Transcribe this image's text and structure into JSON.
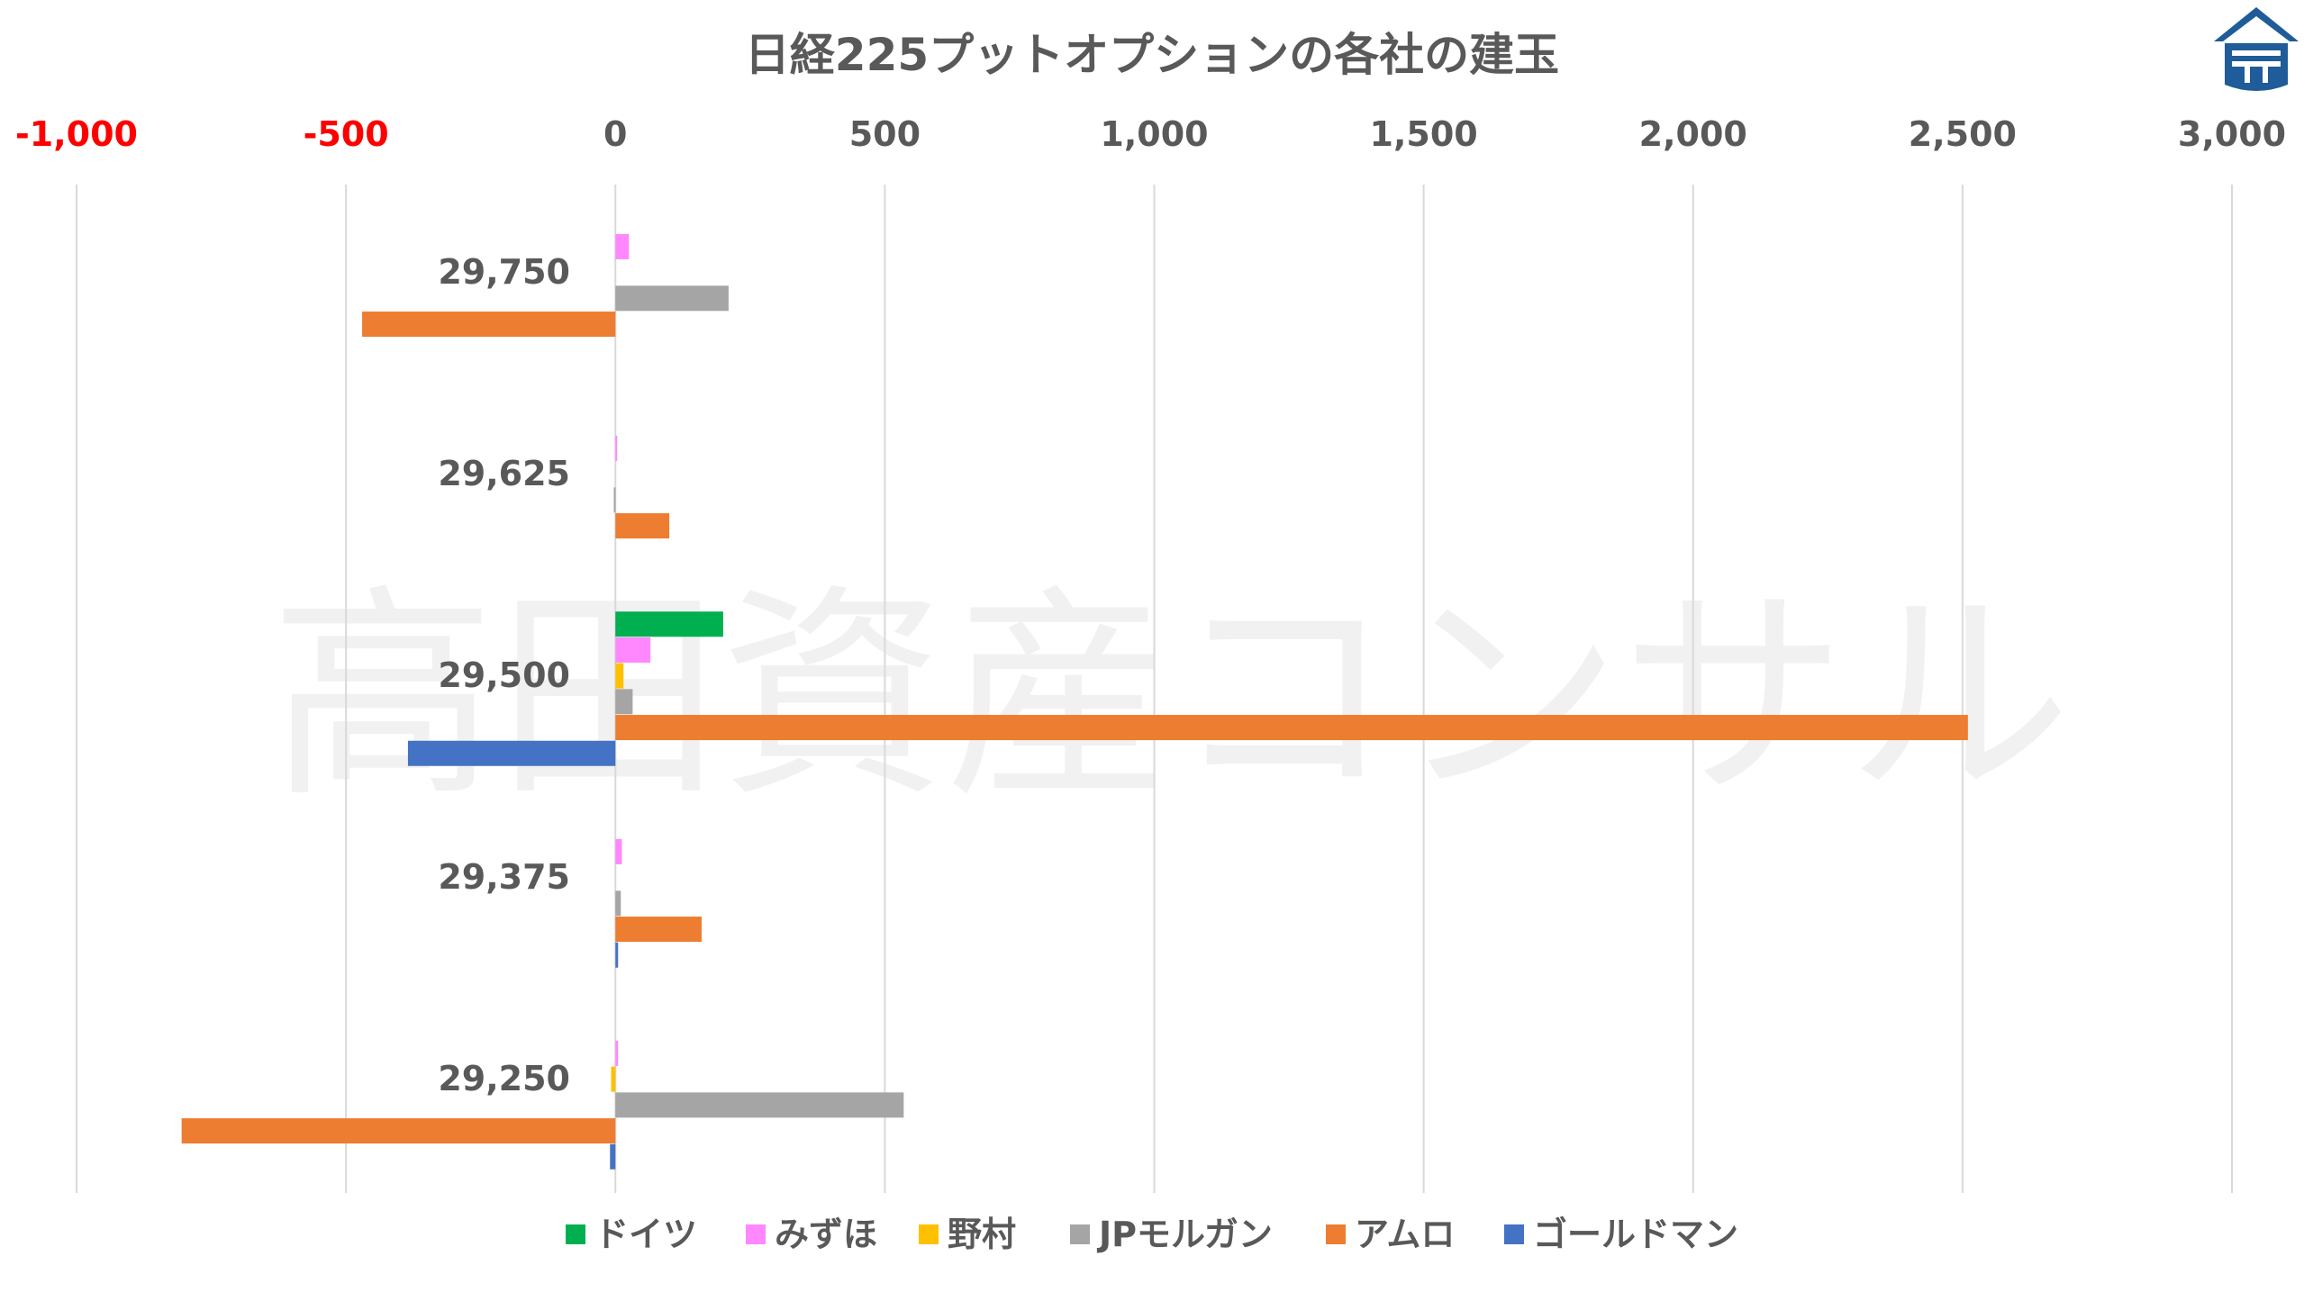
{
  "watermark": "高田資産コンサル",
  "colors": {
    "grid": "#d9d9d9",
    "axis_label": "#595959",
    "negative_label": "#ff0000",
    "logo": "#1f5c99"
  },
  "logo": {
    "icon": "building-logo-icon"
  },
  "chart_data": {
    "type": "bar",
    "orientation": "horizontal",
    "title": "日経225プットオプションの各社の建玉",
    "xlim": [
      -1000,
      3000
    ],
    "x_ticks": [
      -1000,
      -500,
      0,
      500,
      1000,
      1500,
      2000,
      2500,
      3000
    ],
    "x_tick_labels": [
      "-1,000",
      "-500",
      "0",
      "500",
      "1,000",
      "1,500",
      "2,000",
      "2,500",
      "3,000"
    ],
    "x_axis_position": "top",
    "grid": true,
    "legend": "bottom",
    "categories": [
      "29,750",
      "29,625",
      "29,500",
      "29,375",
      "29,250"
    ],
    "series": [
      {
        "name": "ドイツ",
        "color": "#00b050",
        "values": [
          0,
          0,
          200,
          0,
          0
        ]
      },
      {
        "name": "みずほ",
        "color": "#ff87ff",
        "values": [
          25,
          3,
          65,
          12,
          5
        ]
      },
      {
        "name": "野村",
        "color": "#ffc000",
        "values": [
          0,
          0,
          15,
          0,
          -8
        ]
      },
      {
        "name": "JPモルガン",
        "color": "#a5a5a5",
        "values": [
          210,
          -3,
          32,
          10,
          535
        ]
      },
      {
        "name": "アムロ",
        "color": "#ed7d31",
        "values": [
          -470,
          100,
          2510,
          160,
          -805
        ]
      },
      {
        "name": "ゴールドマン",
        "color": "#4472c4",
        "values": [
          0,
          0,
          -385,
          5,
          -10
        ]
      }
    ]
  }
}
